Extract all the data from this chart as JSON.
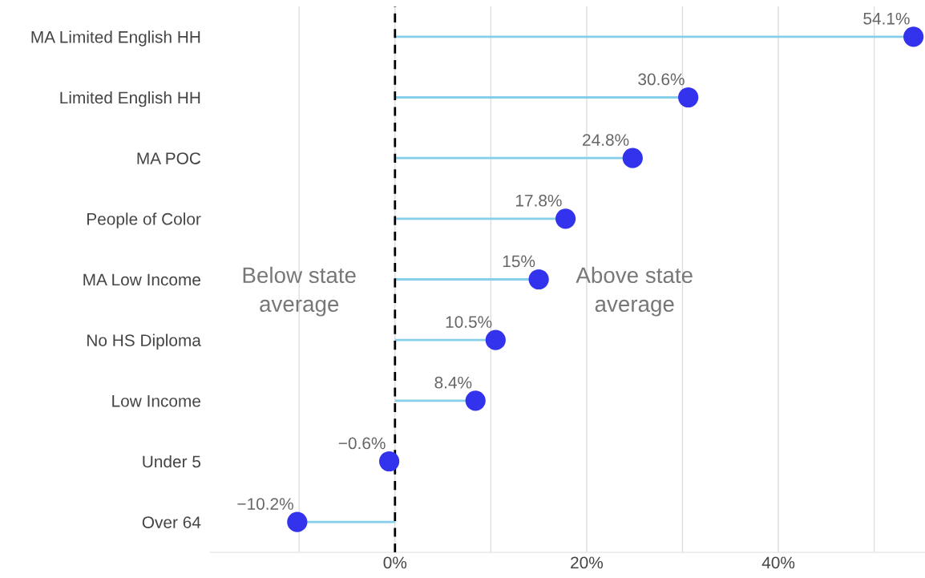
{
  "chart_data": {
    "type": "lollipop",
    "orientation": "horizontal",
    "categories": [
      "MA Limited English HH",
      "Limited English HH",
      "MA POC",
      "People of Color",
      "MA Low Income",
      "No HS Diploma",
      "Low Income",
      "Under 5",
      "Over 64"
    ],
    "series": [
      {
        "color": "#3333ee",
        "values": [
          54.1,
          30.6,
          24.8,
          17.8,
          15,
          10.5,
          8.4,
          -0.6,
          -10.2
        ],
        "value_labels": [
          "54.1%",
          "30.6%",
          "24.8%",
          "17.8%",
          "15%",
          "10.5%",
          "8.4%",
          "−0.6%",
          "−10.2%"
        ]
      }
    ],
    "xlim": [
      -19.3,
      55.3
    ],
    "xticks": [
      {
        "value": -10,
        "label": null
      },
      {
        "value": 0,
        "label": "0%"
      },
      {
        "value": 10,
        "label": null
      },
      {
        "value": 20,
        "label": "20%"
      },
      {
        "value": 30,
        "label": null
      },
      {
        "value": 40,
        "label": "40%"
      },
      {
        "value": 50,
        "label": null
      }
    ],
    "grid": "x",
    "ref_lines": [
      {
        "axis": "x",
        "value": 0,
        "color": "#000000",
        "line_style": "dashed"
      }
    ],
    "annotations": [
      "Below state\naverage",
      "Above state\naverage"
    ]
  }
}
